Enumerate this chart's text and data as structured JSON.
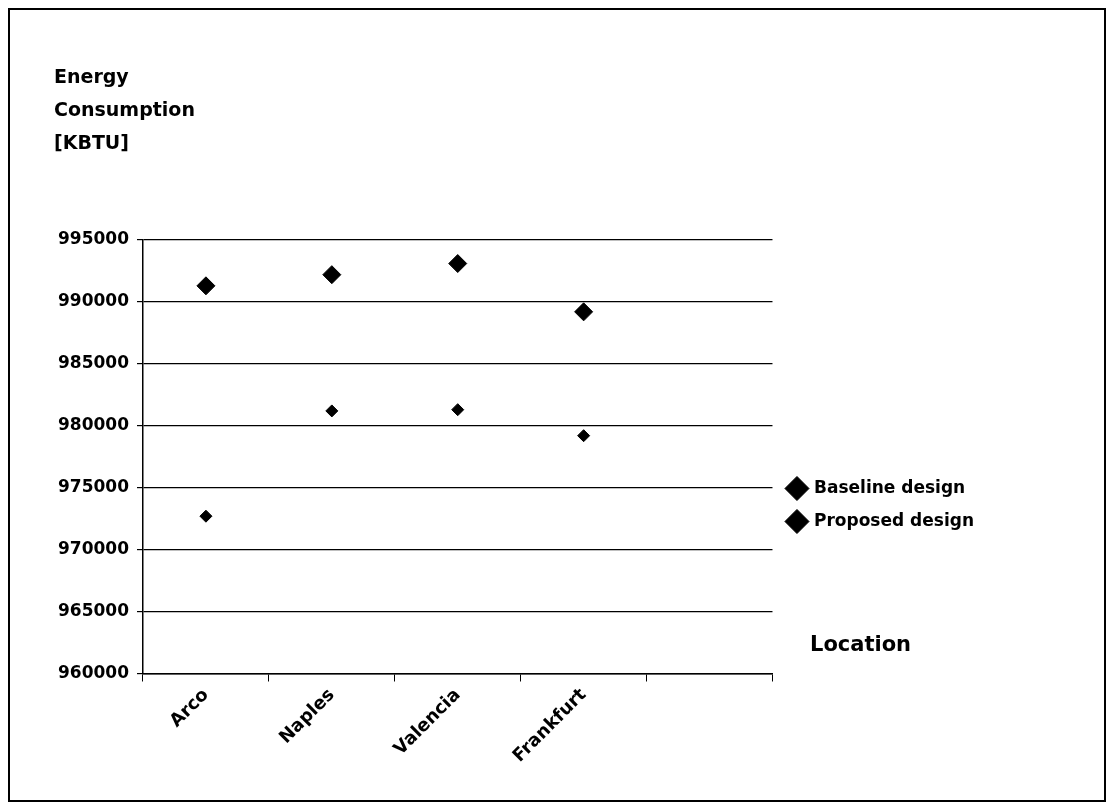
{
  "chart_data": {
    "type": "scatter",
    "ylabel": "Energy Consumption [KBTU]",
    "xlabel": "Location",
    "categories": [
      "Arco",
      "Naples",
      "Valencia",
      "Frankfurt",
      null
    ],
    "series": [
      {
        "name": "Baseline design",
        "color": "#000000",
        "values": [
          991300,
          992200,
          993100,
          989200,
          null
        ]
      },
      {
        "name": "Proposed design",
        "color": "#000000",
        "values": [
          972700,
          981200,
          981300,
          979200,
          null
        ]
      }
    ],
    "ylim": [
      960000,
      995000
    ],
    "yticks": [
      960000,
      965000,
      970000,
      975000,
      980000,
      985000,
      990000,
      995000
    ],
    "grid": "y",
    "legend": "right",
    "marker": "diamond"
  }
}
